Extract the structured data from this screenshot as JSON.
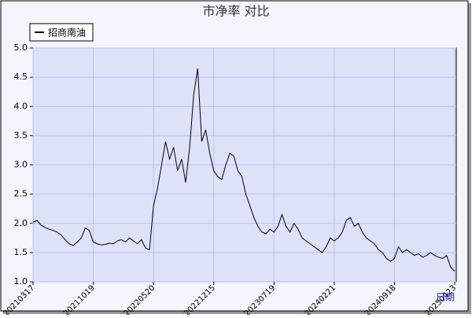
{
  "chart_data": {
    "type": "line",
    "title": "市净率  对比",
    "x_label": "日期",
    "categories": [
      "20210317",
      null,
      null,
      null,
      null,
      null,
      null,
      null,
      null,
      null,
      null,
      null,
      null,
      null,
      null,
      "20211019",
      null,
      null,
      null,
      null,
      null,
      null,
      null,
      null,
      null,
      null,
      null,
      null,
      null,
      null,
      "20220520",
      null,
      null,
      null,
      null,
      null,
      null,
      null,
      null,
      null,
      null,
      null,
      null,
      null,
      null,
      "20221215",
      null,
      null,
      null,
      null,
      null,
      null,
      null,
      null,
      null,
      null,
      null,
      null,
      null,
      null,
      "20230719",
      null,
      null,
      null,
      null,
      null,
      null,
      null,
      null,
      null,
      null,
      null,
      null,
      null,
      null,
      "20240221",
      null,
      null,
      null,
      null,
      null,
      null,
      null,
      null,
      null,
      null,
      null,
      null,
      null,
      null,
      "20240918",
      null,
      null,
      null,
      null,
      null,
      null,
      null,
      null,
      null,
      null,
      null,
      null,
      null,
      null,
      "20250423"
    ],
    "series": [
      {
        "name": "招商南油",
        "color": "#000000",
        "values": [
          2.02,
          2.05,
          1.97,
          1.93,
          1.9,
          1.88,
          1.85,
          1.8,
          1.72,
          1.65,
          1.62,
          1.68,
          1.75,
          1.92,
          1.88,
          1.68,
          1.65,
          1.63,
          1.64,
          1.66,
          1.65,
          1.7,
          1.72,
          1.68,
          1.75,
          1.7,
          1.65,
          1.72,
          1.58,
          1.55,
          2.3,
          2.6,
          3.0,
          3.4,
          3.1,
          3.3,
          2.9,
          3.1,
          2.7,
          3.3,
          4.2,
          4.65,
          3.4,
          3.6,
          3.2,
          2.9,
          2.8,
          2.75,
          3.0,
          3.2,
          3.15,
          2.9,
          2.8,
          2.5,
          2.3,
          2.1,
          1.95,
          1.85,
          1.82,
          1.9,
          1.85,
          1.95,
          2.15,
          1.95,
          1.85,
          2.0,
          1.9,
          1.75,
          1.7,
          1.65,
          1.6,
          1.55,
          1.5,
          1.6,
          1.75,
          1.7,
          1.75,
          1.85,
          2.05,
          2.1,
          1.95,
          2.0,
          1.85,
          1.75,
          1.7,
          1.65,
          1.55,
          1.5,
          1.4,
          1.35,
          1.4,
          1.6,
          1.5,
          1.55,
          1.5,
          1.45,
          1.48,
          1.42,
          1.45,
          1.5,
          1.45,
          1.42,
          1.4,
          1.45,
          1.25,
          1.18
        ]
      }
    ],
    "ylim": [
      1.0,
      5.0
    ],
    "yticks": [
      {
        "value": 1,
        "label": "1.0"
      },
      1.5,
      {
        "value": 2,
        "label": "2.0"
      },
      2.5,
      {
        "value": 3,
        "label": "3.0"
      },
      3.5,
      {
        "value": 4,
        "label": "4.0"
      },
      4.5,
      {
        "value": 5,
        "label": "5.0"
      }
    ],
    "grid": true
  }
}
